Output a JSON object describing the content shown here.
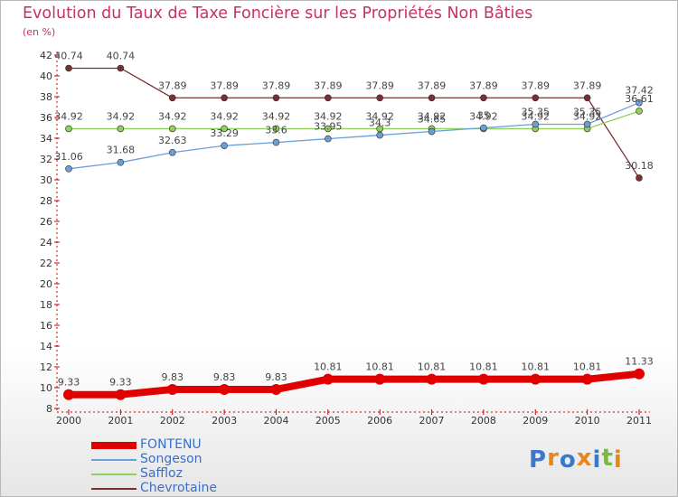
{
  "header": {
    "title": "Evolution du Taux de Taxe Foncière sur les Propriétés Non Bâties",
    "unit": "(en %)"
  },
  "colors": {
    "title": "#c7306b",
    "axis_tick": "#cc0000",
    "grid": "#d8d8d8",
    "legend_text": "#3b6fc7"
  },
  "logo": {
    "letters": [
      "P",
      "r",
      "o",
      "x",
      "i",
      "t",
      "i"
    ],
    "colors": [
      "#3a78c9",
      "#e8861a",
      "#3a78c9",
      "#e8861a",
      "#3a78c9",
      "#7ab648",
      "#e8861a"
    ]
  },
  "chart_data": {
    "type": "line",
    "title": "Evolution du Taux de Taxe Foncière sur les Propriétés Non Bâties",
    "ylabel": "(en %)",
    "xlabel": "",
    "categories": [
      "2000",
      "2001",
      "2002",
      "2003",
      "2004",
      "2005",
      "2006",
      "2007",
      "2008",
      "2009",
      "2010",
      "2011"
    ],
    "ylim": [
      8,
      42
    ],
    "yticks": [
      8,
      10,
      12,
      14,
      16,
      18,
      20,
      22,
      24,
      26,
      28,
      30,
      32,
      34,
      36,
      38,
      40,
      42
    ],
    "grid": false,
    "legend_position": "bottom-left",
    "series": [
      {
        "name": "FONTENU",
        "color": "#e00000",
        "values": [
          9.33,
          9.33,
          9.83,
          9.83,
          9.83,
          10.81,
          10.81,
          10.81,
          10.81,
          10.81,
          10.81,
          11.33
        ],
        "labels": [
          "9.33",
          "9.33",
          "9.83",
          "9.83",
          "9.83",
          "10.81",
          "10.81",
          "10.81",
          "10.81",
          "10.81",
          "10.81",
          "11.33"
        ]
      },
      {
        "name": "Songeson",
        "color": "#6a9fd8",
        "values": [
          31.06,
          31.68,
          32.63,
          33.29,
          33.6,
          33.95,
          34.3,
          34.65,
          35.0,
          35.35,
          35.35,
          37.42
        ],
        "labels": [
          "31.06",
          "31.68",
          "32.63",
          "33.29",
          "33.6",
          "33.95",
          "34.3",
          "34.65",
          "35",
          "35.35",
          "35.35",
          "37.42"
        ]
      },
      {
        "name": "Saffloz",
        "color": "#8ed25a",
        "values": [
          34.92,
          34.92,
          34.92,
          34.92,
          34.92,
          34.92,
          34.92,
          34.92,
          34.92,
          34.92,
          34.92,
          36.61
        ],
        "labels": [
          "34.92",
          "34.92",
          "34.92",
          "34.92",
          "34.92",
          "34.92",
          "34.92",
          "34.92",
          "34.92",
          "34.92",
          "34.92",
          "36.61"
        ]
      },
      {
        "name": "Chevrotaine",
        "color": "#7a3030",
        "values": [
          40.74,
          40.74,
          37.89,
          37.89,
          37.89,
          37.89,
          37.89,
          37.89,
          37.89,
          37.89,
          37.89,
          30.18
        ],
        "labels": [
          "40.74",
          "40.74",
          "37.89",
          "37.89",
          "37.89",
          "37.89",
          "37.89",
          "37.89",
          "37.89",
          "37.89",
          "37.89",
          "30.18"
        ]
      }
    ]
  }
}
